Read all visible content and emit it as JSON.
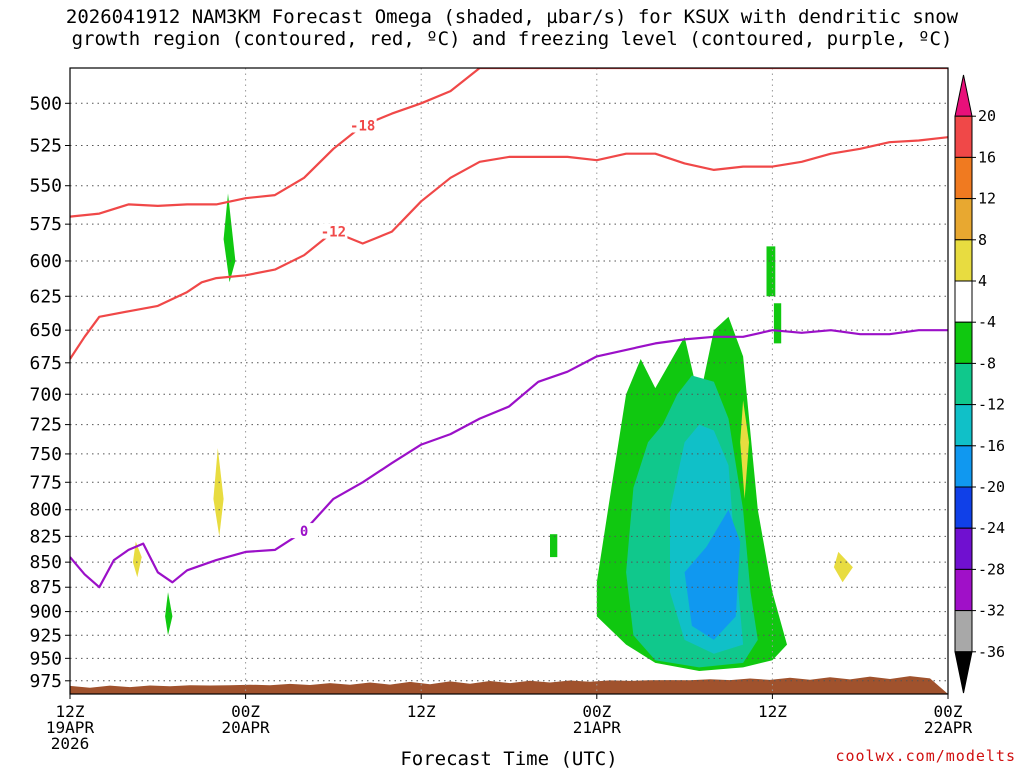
{
  "title_line1": "2026041912 NAM3KM Forecast Omega (shaded, µbar/s) for KSUX with dendritic snow",
  "title_line2": "growth region (contoured, red, ºC) and freezing level (contoured, purple, ºC)",
  "credit": "coolwx.com/modelts",
  "chart_data": {
    "type": "contour",
    "xlabel": "Forecast Time (UTC)",
    "ylabel": "",
    "x_ticks": [
      {
        "hours": 0,
        "l1": "12Z",
        "l2": "19APR",
        "l3": "2026"
      },
      {
        "hours": 12,
        "l1": "00Z",
        "l2": "20APR",
        "l3": ""
      },
      {
        "hours": 24,
        "l1": "12Z",
        "l2": "",
        "l3": ""
      },
      {
        "hours": 36,
        "l1": "00Z",
        "l2": "21APR",
        "l3": ""
      },
      {
        "hours": 48,
        "l1": "12Z",
        "l2": "",
        "l3": ""
      },
      {
        "hours": 60,
        "l1": "00Z",
        "l2": "22APR",
        "l3": ""
      }
    ],
    "xlim": [
      0,
      60
    ],
    "y_ticks": [
      500,
      525,
      550,
      575,
      600,
      625,
      650,
      675,
      700,
      725,
      750,
      775,
      800,
      825,
      850,
      875,
      900,
      925,
      950,
      975
    ],
    "ylim": [
      480,
      990
    ],
    "y_scale": "log-pressure",
    "colorbar": {
      "levels": [
        {
          "label": "20",
          "color": "#e8107a"
        },
        {
          "label": "16",
          "color": "#f04848"
        },
        {
          "label": "12",
          "color": "#f07a20"
        },
        {
          "label": "8",
          "color": "#e8a830"
        },
        {
          "label": "4",
          "color": "#e8dc40"
        },
        {
          "label": "-4",
          "color": "#ffffff"
        },
        {
          "label": "-8",
          "color": "#10c810"
        },
        {
          "label": "-12",
          "color": "#10c88c"
        },
        {
          "label": "-16",
          "color": "#10c0c8"
        },
        {
          "label": "-20",
          "color": "#1098f0"
        },
        {
          "label": "-24",
          "color": "#1040e8"
        },
        {
          "label": "-28",
          "color": "#7010d0"
        },
        {
          "label": "-32",
          "color": "#a010c8"
        },
        {
          "label": "-36",
          "color": "#a8a8a8"
        },
        {
          "label": "",
          "color": "#000000"
        }
      ]
    },
    "series": [
      {
        "name": "-18",
        "color": "#f04848",
        "x": [
          0,
          2,
          4,
          6,
          8,
          10,
          12,
          14,
          16,
          18,
          20,
          22,
          24,
          26,
          28,
          30,
          32,
          34,
          36,
          38,
          40,
          42,
          44,
          46,
          48,
          50,
          52,
          54,
          56,
          58,
          60
        ],
        "y": [
          570,
          568,
          562,
          563,
          562,
          562,
          558,
          556,
          545,
          527,
          513,
          506,
          500,
          493,
          480,
          480,
          480,
          480,
          480,
          480,
          480,
          480,
          480,
          480,
          480,
          480,
          480,
          480,
          480,
          480,
          480
        ]
      },
      {
        "name": "-12",
        "color": "#f04848",
        "x": [
          0,
          1,
          2,
          4,
          6,
          8,
          9,
          10,
          12,
          14,
          16,
          18,
          20,
          21,
          22,
          24,
          26,
          28,
          30,
          32,
          34,
          36,
          38,
          40,
          42,
          44,
          46,
          48,
          50,
          52,
          54,
          56,
          58,
          60
        ],
        "y": [
          672,
          655,
          640,
          636,
          632,
          622,
          615,
          612,
          610,
          606,
          596,
          580,
          588,
          584,
          580,
          560,
          545,
          535,
          532,
          532,
          532,
          534,
          530,
          530,
          536,
          540,
          538,
          538,
          535,
          530,
          527,
          523,
          522,
          520
        ]
      },
      {
        "name": "0",
        "color": "#9b10c8",
        "x": [
          0,
          1,
          2,
          3,
          4,
          5,
          6,
          7,
          8,
          10,
          12,
          14,
          16,
          18,
          20,
          22,
          24,
          26,
          28,
          30,
          32,
          34,
          36,
          38,
          40,
          42,
          44,
          46,
          48,
          50,
          52,
          54,
          56,
          58,
          60
        ],
        "y": [
          845,
          862,
          875,
          848,
          838,
          832,
          860,
          870,
          858,
          848,
          840,
          838,
          820,
          790,
          775,
          758,
          742,
          733,
          720,
          710,
          690,
          682,
          670,
          665,
          660,
          657,
          655,
          655,
          650,
          652,
          650,
          653,
          653,
          650,
          650
        ]
      }
    ],
    "omega_regions": [
      {
        "level": "-8",
        "points": [
          [
            36,
            870
          ],
          [
            37,
            780
          ],
          [
            38,
            700
          ],
          [
            39,
            672
          ],
          [
            40,
            695
          ],
          [
            42,
            655
          ],
          [
            43,
            705
          ],
          [
            44,
            650
          ],
          [
            45,
            640
          ],
          [
            46,
            670
          ],
          [
            47,
            800
          ],
          [
            48,
            880
          ],
          [
            49,
            935
          ],
          [
            48,
            952
          ],
          [
            46,
            960
          ],
          [
            43,
            964
          ],
          [
            40,
            955
          ],
          [
            38,
            935
          ],
          [
            36,
            905
          ]
        ]
      },
      {
        "level": "-12",
        "points": [
          [
            38,
            860
          ],
          [
            38.5,
            780
          ],
          [
            39.5,
            740
          ],
          [
            40.5,
            725
          ],
          [
            41.5,
            700
          ],
          [
            42.5,
            685
          ],
          [
            44,
            690
          ],
          [
            45,
            720
          ],
          [
            46,
            800
          ],
          [
            46.5,
            880
          ],
          [
            47,
            930
          ],
          [
            46,
            955
          ],
          [
            43,
            960
          ],
          [
            40,
            952
          ],
          [
            38.5,
            925
          ]
        ]
      },
      {
        "level": "-16",
        "points": [
          [
            41,
            800
          ],
          [
            42,
            740
          ],
          [
            43,
            725
          ],
          [
            44,
            730
          ],
          [
            45,
            760
          ],
          [
            45.5,
            850
          ],
          [
            46,
            935
          ],
          [
            44,
            945
          ],
          [
            42,
            930
          ],
          [
            41,
            880
          ]
        ]
      },
      {
        "level": "-20",
        "points": [
          [
            42,
            860
          ],
          [
            43.5,
            835
          ],
          [
            45,
            800
          ],
          [
            45.8,
            830
          ],
          [
            45.5,
            905
          ],
          [
            44,
            930
          ],
          [
            42.5,
            915
          ]
        ]
      },
      {
        "level": "-8",
        "points": [
          [
            10.8,
            555
          ],
          [
            11.3,
            600
          ],
          [
            10.9,
            615
          ],
          [
            10.5,
            585
          ]
        ]
      },
      {
        "level": "-8",
        "points": [
          [
            6.7,
            880
          ],
          [
            7,
            905
          ],
          [
            6.7,
            925
          ],
          [
            6.5,
            905
          ]
        ]
      },
      {
        "level": "-8",
        "points": [
          [
            32.8,
            823
          ],
          [
            33.3,
            823
          ],
          [
            33.3,
            845
          ],
          [
            32.8,
            845
          ]
        ]
      },
      {
        "level": "-8",
        "points": [
          [
            47.6,
            590
          ],
          [
            48.2,
            590
          ],
          [
            48.2,
            625
          ],
          [
            47.6,
            625
          ]
        ]
      },
      {
        "level": "-8",
        "points": [
          [
            48.1,
            630
          ],
          [
            48.6,
            630
          ],
          [
            48.6,
            660
          ],
          [
            48.1,
            660
          ]
        ]
      },
      {
        "level": "4",
        "points": [
          [
            10.1,
            745
          ],
          [
            10.5,
            790
          ],
          [
            10.2,
            825
          ],
          [
            9.8,
            790
          ]
        ]
      },
      {
        "level": "4",
        "points": [
          [
            4.5,
            830
          ],
          [
            4.9,
            845
          ],
          [
            4.6,
            865
          ],
          [
            4.3,
            850
          ]
        ]
      },
      {
        "level": "4",
        "points": [
          [
            52.5,
            840
          ],
          [
            53.5,
            855
          ],
          [
            52.8,
            870
          ],
          [
            52.2,
            855
          ]
        ]
      },
      {
        "level": "4",
        "points": [
          [
            46,
            705
          ],
          [
            46.4,
            740
          ],
          [
            46.1,
            790
          ],
          [
            45.8,
            740
          ]
        ]
      }
    ]
  }
}
